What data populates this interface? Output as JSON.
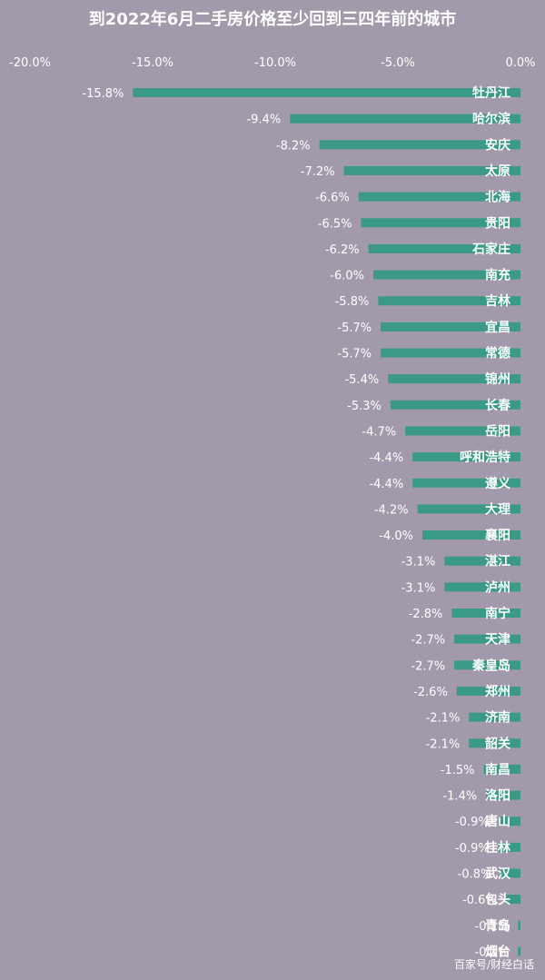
{
  "chart_data": {
    "type": "bar",
    "orientation": "horizontal",
    "title": "到2022年6月二手房价格至少回到三四年前的城市",
    "xlim": [
      -20.0,
      0.0
    ],
    "x_ticks": [
      "-20.0%",
      "-15.0%",
      "-10.0%",
      "-5.0%",
      "0.0%"
    ],
    "x_tick_values": [
      -20,
      -15,
      -10,
      -5,
      0
    ],
    "x_axis_position": "top",
    "grid": false,
    "bar_color": "#3a9a86",
    "categories": [
      "牡丹江",
      "哈尔滨",
      "安庆",
      "太原",
      "北海",
      "贵阳",
      "石家庄",
      "南充",
      "吉林",
      "宜昌",
      "常德",
      "锦州",
      "长春",
      "岳阳",
      "呼和浩特",
      "遵义",
      "大理",
      "襄阳",
      "湛江",
      "泸州",
      "南宁",
      "天津",
      "秦皇岛",
      "郑州",
      "济南",
      "韶关",
      "南昌",
      "洛阳",
      "唐山",
      "桂林",
      "武汉",
      "包头",
      "青岛",
      "烟台"
    ],
    "values": [
      -15.8,
      -9.4,
      -8.2,
      -7.2,
      -6.6,
      -6.5,
      -6.2,
      -6.0,
      -5.8,
      -5.7,
      -5.7,
      -5.4,
      -5.3,
      -4.7,
      -4.4,
      -4.4,
      -4.2,
      -4.0,
      -3.1,
      -3.1,
      -2.8,
      -2.7,
      -2.7,
      -2.6,
      -2.1,
      -2.1,
      -1.5,
      -1.4,
      -0.9,
      -0.9,
      -0.8,
      -0.6,
      -0.1,
      -0.1
    ],
    "value_labels": [
      "-15.8%",
      "-9.4%",
      "-8.2%",
      "-7.2%",
      "-6.6%",
      "-6.5%",
      "-6.2%",
      "-6.0%",
      "-5.8%",
      "-5.7%",
      "-5.7%",
      "-5.4%",
      "-5.3%",
      "-4.7%",
      "-4.4%",
      "-4.4%",
      "-4.2%",
      "-4.0%",
      "-3.1%",
      "-3.1%",
      "-2.8%",
      "-2.7%",
      "-2.7%",
      "-2.6%",
      "-2.1%",
      "-2.1%",
      "-1.5%",
      "-1.4%",
      "-0.9%",
      "-0.9%",
      "-0.8%",
      "-0.6%",
      "-0.1%",
      "-0.1%"
    ]
  },
  "watermark": "百家号/财经白话"
}
